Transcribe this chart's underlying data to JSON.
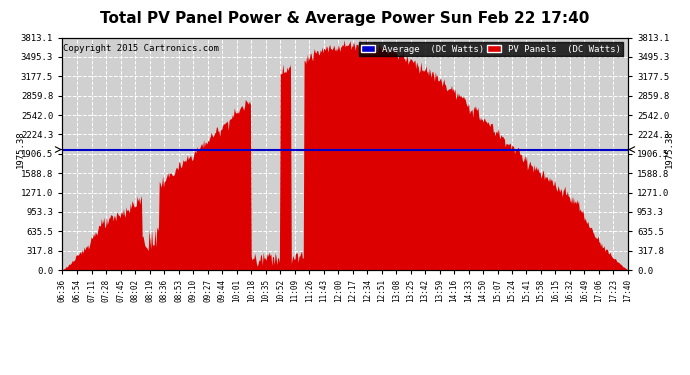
{
  "title": "Total PV Panel Power & Average Power Sun Feb 22 17:40",
  "copyright": "Copyright 2015 Cartronics.com",
  "average_value": 1975.38,
  "y_max": 3813.1,
  "y_min": 0.0,
  "y_ticks": [
    0.0,
    317.8,
    635.5,
    953.3,
    1271.0,
    1588.8,
    1906.5,
    2224.3,
    2542.0,
    2859.8,
    3177.5,
    3495.3,
    3813.1
  ],
  "bg_color": "#ffffff",
  "plot_bg_color": "#d0d0d0",
  "area_color": "#dd0000",
  "avg_line_color": "#0000cc",
  "grid_color": "#ffffff",
  "title_color": "#000000",
  "legend_avg_bg": "#0000cc",
  "legend_pv_bg": "#dd0000",
  "legend_avg_label": "Average  (DC Watts)",
  "legend_pv_label": "PV Panels  (DC Watts)",
  "avg_annotation": "1975.38",
  "x_tick_labels": [
    "06:36",
    "06:54",
    "07:11",
    "07:28",
    "07:45",
    "08:02",
    "08:19",
    "08:36",
    "08:53",
    "09:10",
    "09:27",
    "09:44",
    "10:01",
    "10:18",
    "10:35",
    "10:52",
    "11:09",
    "11:26",
    "11:43",
    "12:00",
    "12:17",
    "12:34",
    "12:51",
    "13:08",
    "13:25",
    "13:42",
    "13:59",
    "14:16",
    "14:33",
    "14:50",
    "15:07",
    "15:24",
    "15:41",
    "15:58",
    "16:15",
    "16:32",
    "16:49",
    "17:06",
    "17:23",
    "17:40"
  ]
}
